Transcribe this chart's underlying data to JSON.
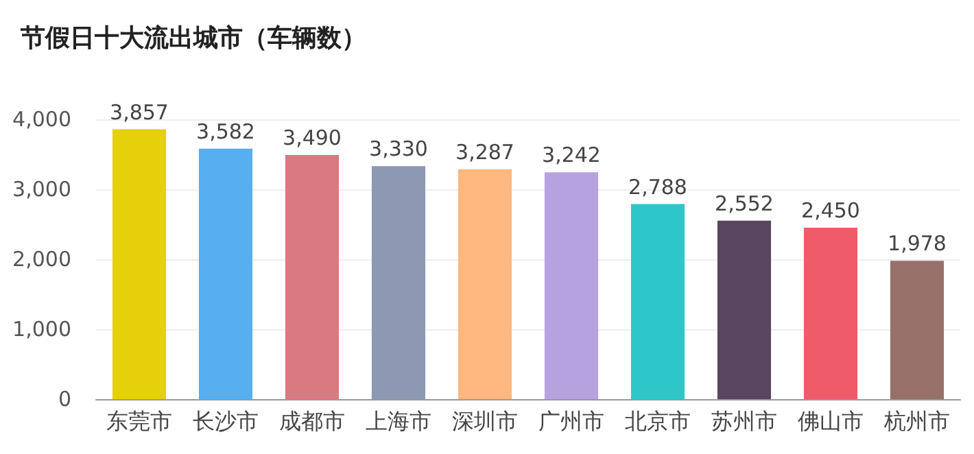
{
  "chart_data": {
    "type": "bar",
    "title": "节假日十大流出城市（车辆数）",
    "categories": [
      "东莞市",
      "长沙市",
      "成都市",
      "上海市",
      "深圳市",
      "广州市",
      "北京市",
      "苏州市",
      "佛山市",
      "杭州市"
    ],
    "values": [
      3857,
      3582,
      3490,
      3330,
      3287,
      3242,
      2788,
      2552,
      2450,
      1978
    ],
    "value_labels": [
      "3,857",
      "3,582",
      "3,490",
      "3,330",
      "3,287",
      "3,242",
      "2,788",
      "2,552",
      "2,450",
      "1,978"
    ],
    "colors": [
      "#e6cf0b",
      "#58aff0",
      "#d97a80",
      "#8d98b3",
      "#ffb880",
      "#b6a2de",
      "#2ec7c9",
      "#5a4560",
      "#f05b6a",
      "#977169"
    ],
    "ylim": [
      0,
      4000
    ],
    "yticks": [
      0,
      {
        "value": 1000,
        "label": "1,000"
      },
      {
        "value": 2000,
        "label": "2,000"
      },
      {
        "value": 3000,
        "label": "3,000"
      },
      {
        "value": 4000,
        "label": "4,000"
      }
    ],
    "grid": "y"
  }
}
